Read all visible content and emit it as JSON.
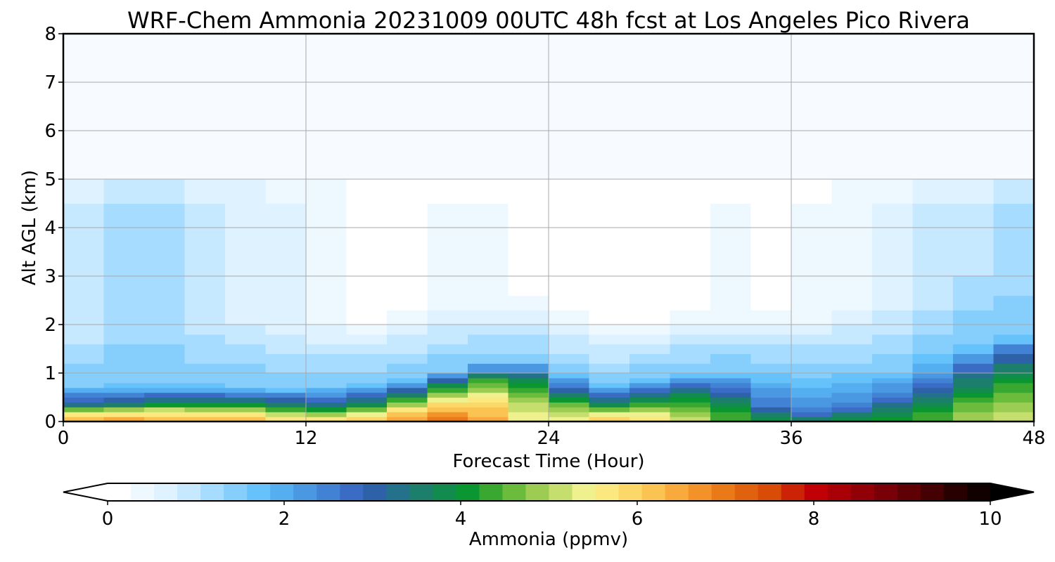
{
  "chart_data": {
    "type": "heatmap",
    "title": "WRF-Chem Ammonia  20231009 00UTC 48h fcst at Los Angeles Pico Rivera",
    "xlabel": "Forecast Time (Hour)",
    "ylabel": "Alt AGL (km)",
    "xlim": [
      0,
      48
    ],
    "ylim": [
      0,
      8
    ],
    "xticks": [
      0,
      12,
      24,
      36,
      48
    ],
    "yticks": [
      0,
      1,
      2,
      3,
      4,
      5,
      6,
      7,
      8
    ],
    "grid": true,
    "colorbar": {
      "label": "Ammonia  (ppmv)",
      "min": 0,
      "max": 10,
      "ticks": [
        0,
        2,
        4,
        6,
        8,
        10
      ],
      "extend": "both",
      "colors": [
        "#ffffff",
        "#eef8ff",
        "#dff2ff",
        "#c6e9ff",
        "#a6dcff",
        "#86cffd",
        "#66c2fb",
        "#54aef0",
        "#4a98e2",
        "#4282d4",
        "#3a6cc6",
        "#2e62a8",
        "#23718a",
        "#1b7f6c",
        "#118c4e",
        "#0a9630",
        "#38a830",
        "#6bbb3c",
        "#9ccc52",
        "#c6de6e",
        "#eef18e",
        "#fbe87e",
        "#fbd868",
        "#fbc452",
        "#f8ab3c",
        "#f39228",
        "#ea7a18",
        "#e0620e",
        "#d84c08",
        "#cc2206",
        "#c00006",
        "#a80006",
        "#900006",
        "#780006",
        "#5e0004",
        "#440002",
        "#280000",
        "#100000"
      ]
    },
    "grid_x": [
      0,
      2,
      4,
      6,
      8,
      10,
      12,
      14,
      16,
      18,
      20,
      22,
      24,
      26,
      28,
      30,
      32,
      34,
      36,
      38,
      40,
      42,
      44,
      46,
      48
    ],
    "grid_y": [
      0,
      0.1,
      0.2,
      0.3,
      0.4,
      0.5,
      0.6,
      0.7,
      0.8,
      0.9,
      1.0,
      1.2,
      1.4,
      1.6,
      1.8,
      2.0,
      2.3,
      2.6,
      3.0,
      3.5,
      4.0,
      4.5,
      5.0,
      6.0,
      8.0
    ],
    "profile": {
      "h1": [
        0.7,
        0.7,
        0.75,
        0.7,
        0.72,
        0.68,
        0.7,
        0.72,
        0.8,
        0.95,
        1.1,
        1.25,
        1.15,
        0.75,
        0.75,
        0.95,
        1.0,
        1.0,
        0.95,
        0.9,
        0.95,
        1.15,
        1.4,
        1.65,
        1.9
      ],
      "s1": [
        3.4,
        3.4,
        3.6,
        3.6,
        3.6,
        3.6,
        3.5,
        3.5,
        3.7,
        3.8,
        4.0,
        4.1,
        3.9,
        3.6,
        3.7,
        3.9,
        3.8,
        3.0,
        2.5,
        2.5,
        2.7,
        2.8,
        3.1,
        3.4,
        3.6
      ],
      "h2": [
        0.4,
        0.3,
        0.42,
        0.4,
        0.4,
        0.38,
        0.3,
        0.32,
        0.42,
        0.62,
        0.85,
        0.95,
        0.7,
        0.35,
        0.4,
        0.5,
        0.55,
        0.4,
        0.15,
        0.2,
        0.35,
        0.55,
        0.8,
        1.05,
        1.2
      ],
      "s2": [
        6.2,
        6.8,
        6.6,
        6.3,
        6.5,
        6.0,
        5.6,
        5.8,
        6.3,
        7.0,
        7.0,
        6.0,
        5.1,
        5.8,
        6.2,
        5.5,
        4.7,
        4.2,
        3.8,
        3.9,
        4.2,
        4.3,
        4.5,
        5.4,
        5.0
      ],
      "upper_hour": [
        0,
        2,
        4,
        6,
        8,
        10,
        12,
        14,
        16,
        18,
        20,
        22,
        24,
        26,
        28,
        30,
        32,
        34,
        36,
        38,
        40,
        42,
        44,
        46,
        48
      ],
      "upper_val": [
        0.6,
        1.0,
        1.2,
        1.0,
        0.8,
        0.7,
        0.5,
        0.25,
        0.2,
        0.3,
        0.35,
        0.3,
        0.2,
        0.1,
        0.1,
        0.2,
        0.3,
        0.25,
        0.25,
        0.4,
        0.6,
        0.7,
        0.9,
        1.1,
        1.2
      ]
    }
  }
}
